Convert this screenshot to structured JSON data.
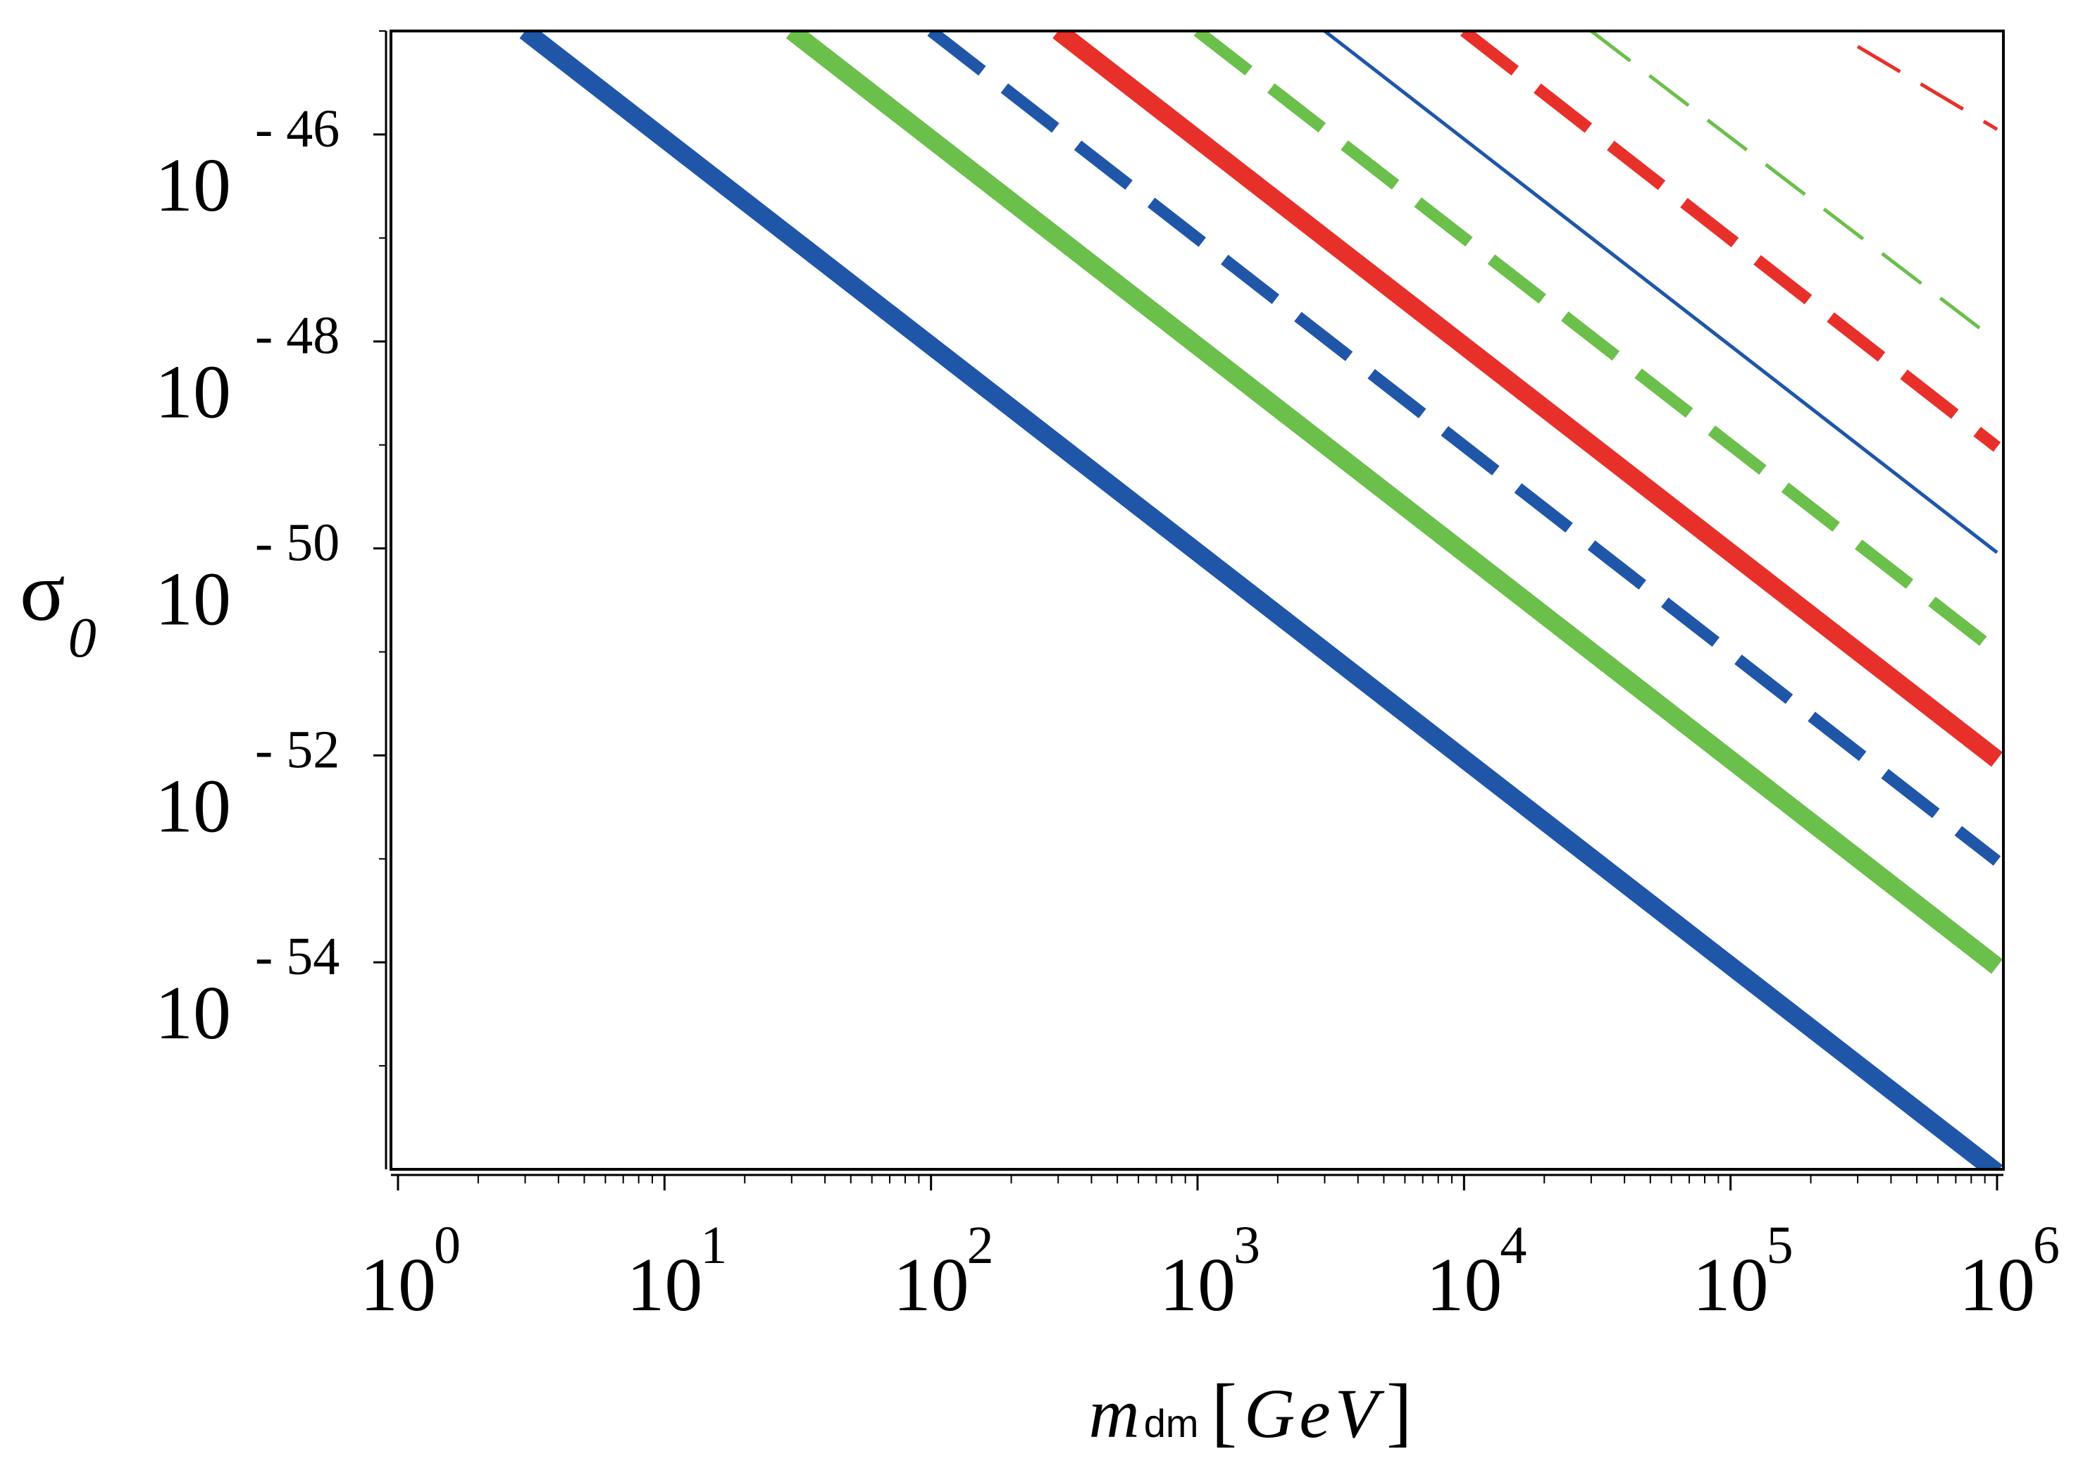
{
  "chart_data": {
    "type": "line",
    "title": "",
    "xscale": "log",
    "yscale": "log",
    "xlim": [
      1,
      1000000
    ],
    "ylim": [
      1e-56,
      1e-45
    ],
    "grid": false,
    "legend": "none",
    "xlabel": {
      "main": "m",
      "sub": "dm",
      "unit": "GeV",
      "bracket_open": "[",
      "bracket_close": "]"
    },
    "ylabel": {
      "main": "σ",
      "sub": "0"
    },
    "x_ticks": [
      {
        "base": "10",
        "exp": "0"
      },
      {
        "base": "10",
        "exp": "1"
      },
      {
        "base": "10",
        "exp": "2"
      },
      {
        "base": "10",
        "exp": "3"
      },
      {
        "base": "10",
        "exp": "4"
      },
      {
        "base": "10",
        "exp": "5"
      },
      {
        "base": "10",
        "exp": "6"
      }
    ],
    "y_ticks": [
      {
        "base": "10",
        "exp": "- 46"
      },
      {
        "base": "10",
        "exp": "- 48"
      },
      {
        "base": "10",
        "exp": "- 50"
      },
      {
        "base": "10",
        "exp": "- 52"
      },
      {
        "base": "10",
        "exp": "- 54"
      }
    ],
    "series": [
      {
        "name": "blue-thick-solid",
        "color": "#1f56a8",
        "weight": "thick",
        "style": "solid",
        "x": [
          3,
          1000000
        ],
        "y_log10": [
          -45.0,
          -56.03
        ]
      },
      {
        "name": "green-thick-solid",
        "color": "#6bbf4b",
        "weight": "thick",
        "style": "solid",
        "x": [
          30,
          1000000
        ],
        "y_log10": [
          -45.0,
          -54.04
        ]
      },
      {
        "name": "blue-medium-dashed",
        "color": "#1f56a8",
        "weight": "medium",
        "style": "dashed",
        "x": [
          100,
          1000000
        ],
        "y_log10": [
          -45.0,
          -53.02
        ]
      },
      {
        "name": "red-thick-solid",
        "color": "#e8302a",
        "weight": "thick",
        "style": "solid",
        "x": [
          300,
          1000000
        ],
        "y_log10": [
          -45.0,
          -52.04
        ]
      },
      {
        "name": "green-medium-dashed",
        "color": "#6bbf4b",
        "weight": "medium",
        "style": "dashed",
        "x": [
          1000,
          1000000
        ],
        "y_log10": [
          -45.0,
          -51.0
        ]
      },
      {
        "name": "blue-thin-solid",
        "color": "#1f56a8",
        "weight": "thin",
        "style": "solid",
        "x": [
          3000,
          1000000
        ],
        "y_log10": [
          -45.0,
          -50.04
        ]
      },
      {
        "name": "red-medium-dashed",
        "color": "#e8302a",
        "weight": "medium",
        "style": "dashed",
        "x": [
          10000,
          1000000
        ],
        "y_log10": [
          -45.0,
          -49.02
        ]
      },
      {
        "name": "green-thin-dashed",
        "color": "#6bbf4b",
        "weight": "thin",
        "style": "dashed",
        "x": [
          30000,
          1000000
        ],
        "y_log10": [
          -45.0,
          -48.0
        ]
      },
      {
        "name": "red-thin-dashed",
        "color": "#e8302a",
        "weight": "thin",
        "style": "dashed",
        "x": [
          300000,
          1000000
        ],
        "y_log10": [
          -45.15,
          -45.95
        ]
      }
    ]
  }
}
